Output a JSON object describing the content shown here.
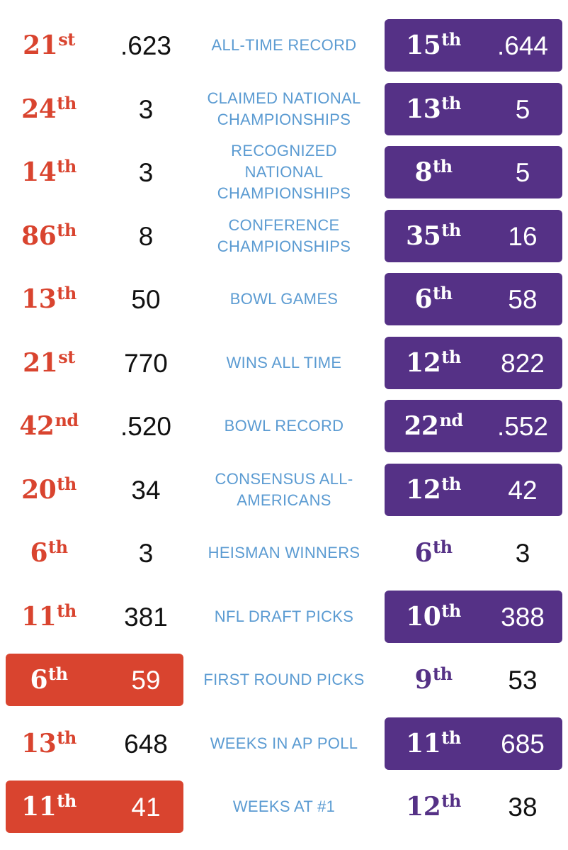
{
  "colors": {
    "left_accent": "#d9442f",
    "right_accent": "#553186",
    "label": "#5b9bd2",
    "value": "#111111",
    "on_box": "#ffffff"
  },
  "rows": [
    {
      "label": "ALL-TIME RECORD",
      "left": {
        "rank": "21",
        "suffix": "st",
        "value": ".623",
        "highlight": false
      },
      "right": {
        "rank": "15",
        "suffix": "th",
        "value": ".644",
        "highlight": true
      }
    },
    {
      "label": "CLAIMED NATIONAL CHAMPIONSHIPS",
      "left": {
        "rank": "24",
        "suffix": "th",
        "value": "3",
        "highlight": false
      },
      "right": {
        "rank": "13",
        "suffix": "th",
        "value": "5",
        "highlight": true
      }
    },
    {
      "label": "RECOGNIZED NATIONAL CHAMPIONSHIPS",
      "left": {
        "rank": "14",
        "suffix": "th",
        "value": "3",
        "highlight": false
      },
      "right": {
        "rank": "8",
        "suffix": "th",
        "value": "5",
        "highlight": true
      }
    },
    {
      "label": "CONFERENCE CHAMPIONSHIPS",
      "left": {
        "rank": "86",
        "suffix": "th",
        "value": "8",
        "highlight": false
      },
      "right": {
        "rank": "35",
        "suffix": "th",
        "value": "16",
        "highlight": true
      }
    },
    {
      "label": "BOWL GAMES",
      "left": {
        "rank": "13",
        "suffix": "th",
        "value": "50",
        "highlight": false
      },
      "right": {
        "rank": "6",
        "suffix": "th",
        "value": "58",
        "highlight": true
      }
    },
    {
      "label": "WINS ALL TIME",
      "left": {
        "rank": "21",
        "suffix": "st",
        "value": "770",
        "highlight": false
      },
      "right": {
        "rank": "12",
        "suffix": "th",
        "value": "822",
        "highlight": true
      }
    },
    {
      "label": "BOWL RECORD",
      "left": {
        "rank": "42",
        "suffix": "nd",
        "value": ".520",
        "highlight": false
      },
      "right": {
        "rank": "22",
        "suffix": "nd",
        "value": ".552",
        "highlight": true
      }
    },
    {
      "label": "CONSENSUS ALL-AMERICANS",
      "left": {
        "rank": "20",
        "suffix": "th",
        "value": "34",
        "highlight": false
      },
      "right": {
        "rank": "12",
        "suffix": "th",
        "value": "42",
        "highlight": true
      }
    },
    {
      "label": "HEISMAN WINNERS",
      "left": {
        "rank": "6",
        "suffix": "th",
        "value": "3",
        "highlight": false
      },
      "right": {
        "rank": "6",
        "suffix": "th",
        "value": "3",
        "highlight": false
      }
    },
    {
      "label": "NFL DRAFT PICKS",
      "left": {
        "rank": "11",
        "suffix": "th",
        "value": "381",
        "highlight": false
      },
      "right": {
        "rank": "10",
        "suffix": "th",
        "value": "388",
        "highlight": true
      }
    },
    {
      "label": "FIRST ROUND PICKS",
      "left": {
        "rank": "6",
        "suffix": "th",
        "value": "59",
        "highlight": true
      },
      "right": {
        "rank": "9",
        "suffix": "th",
        "value": "53",
        "highlight": false
      }
    },
    {
      "label": "WEEKS IN AP POLL",
      "left": {
        "rank": "13",
        "suffix": "th",
        "value": "648",
        "highlight": false
      },
      "right": {
        "rank": "11",
        "suffix": "th",
        "value": "685",
        "highlight": true
      }
    },
    {
      "label": "WEEKS AT #1",
      "left": {
        "rank": "11",
        "suffix": "th",
        "value": "41",
        "highlight": true
      },
      "right": {
        "rank": "12",
        "suffix": "th",
        "value": "38",
        "highlight": false
      }
    }
  ]
}
